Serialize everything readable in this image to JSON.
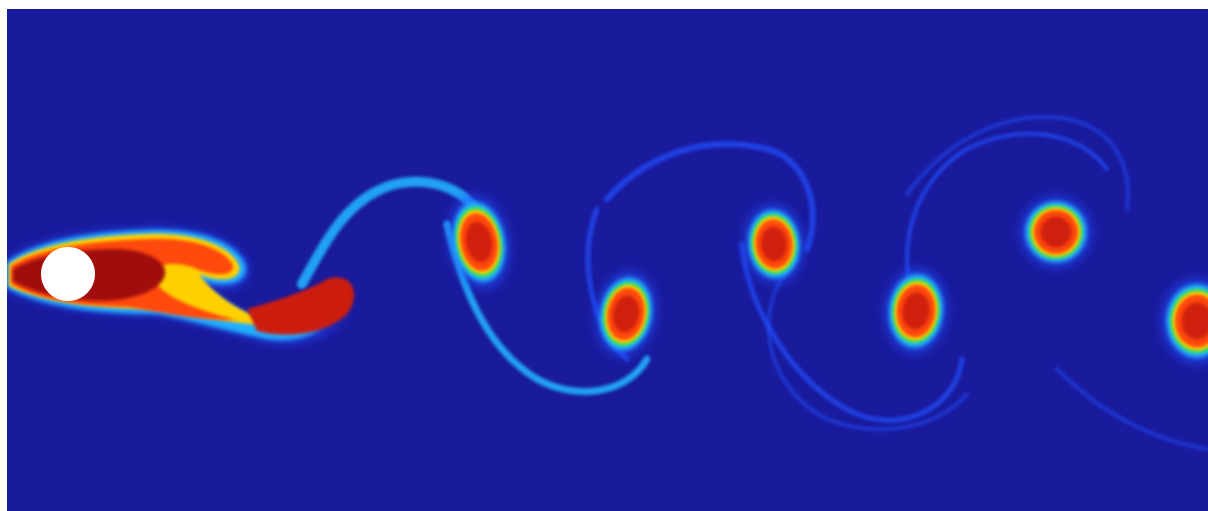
{
  "image": {
    "subject": "vortex street",
    "colors": {
      "field_background": "#1a1a9c",
      "page_border": "#ffffff",
      "cylinder": "#ffffff",
      "core_hot": "#cc1a10",
      "core_warm": "#ff4a10",
      "mid_yellow": "#ffd000",
      "mid_green": "#30e060",
      "edge_cyan": "#20b0ff",
      "edge_blue": "#2050ff",
      "wake_dark_red": "#a01010"
    },
    "icons": {
      "cylinder": "circle-obstacle-icon"
    }
  }
}
